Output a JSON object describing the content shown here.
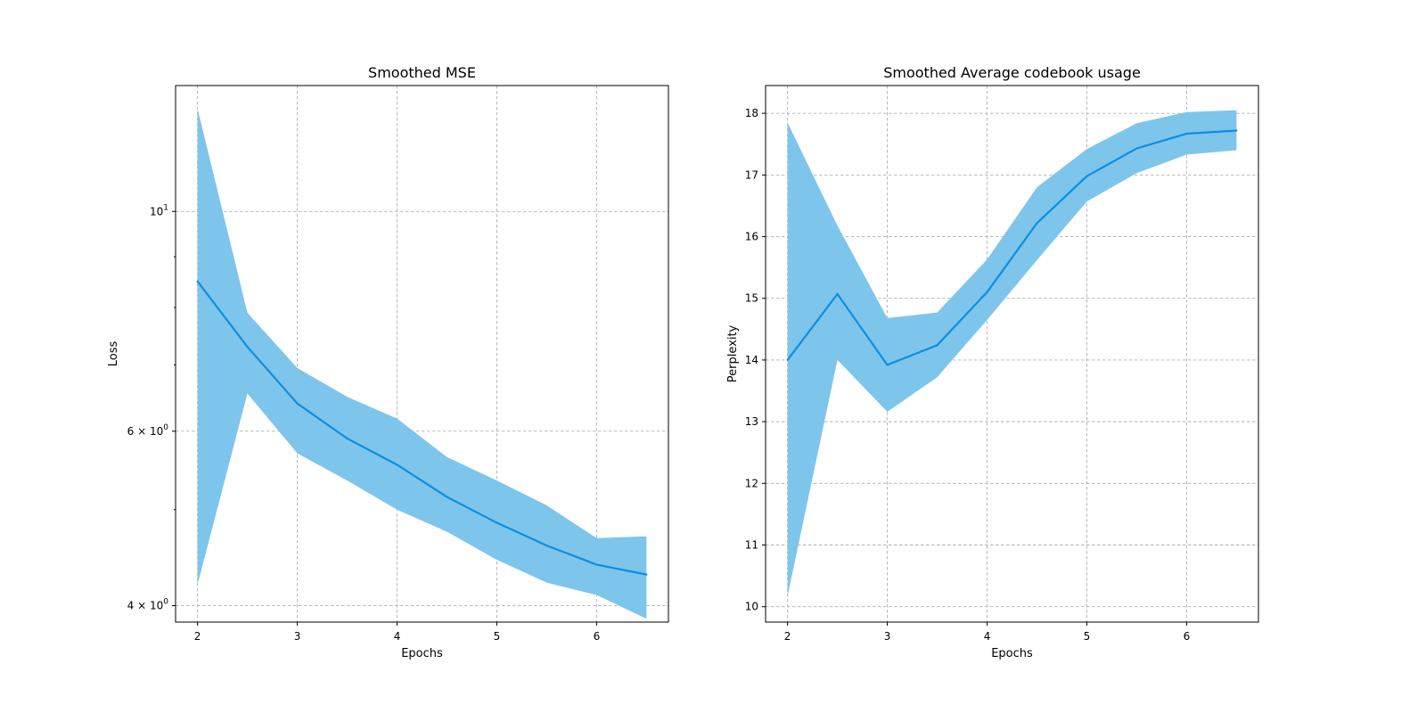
{
  "chart_data": [
    {
      "type": "line",
      "title": "Smoothed MSE",
      "xlabel": "Epochs",
      "ylabel": "Loss",
      "yscale": "log",
      "xlim": [
        1.78,
        6.72
      ],
      "ylim": [
        3.85,
        13.4
      ],
      "grid": true,
      "x_ticks": [
        {
          "value": 2,
          "label": "2"
        },
        {
          "value": 3,
          "label": "3"
        },
        {
          "value": 4,
          "label": "4"
        },
        {
          "value": 5,
          "label": "5"
        },
        {
          "value": 6,
          "label": "6"
        }
      ],
      "y_ticks": [
        {
          "value": 10,
          "label": "10",
          "exp": "1"
        },
        {
          "value": 6,
          "label": "6 × 10",
          "exp": "0"
        },
        {
          "value": 4,
          "label": "4 × 10",
          "exp": "0"
        }
      ],
      "y_minor_ticks": [
        5,
        7,
        8,
        9
      ],
      "color": "#0a8fe3",
      "fill_color": "#7ec5ec",
      "series": [
        {
          "x": [
            2,
            2.5,
            3,
            3.5,
            4,
            4.5,
            5,
            5.5,
            6,
            6.5
          ],
          "values": [
            8.5,
            7.3,
            6.4,
            5.9,
            5.55,
            5.15,
            4.85,
            4.6,
            4.4,
            4.3
          ],
          "lower": [
            4.2,
            6.55,
            5.7,
            5.35,
            5.0,
            4.75,
            4.45,
            4.22,
            4.1,
            3.88
          ],
          "upper": [
            12.7,
            7.9,
            6.95,
            6.5,
            6.18,
            5.65,
            5.35,
            5.05,
            4.68,
            4.7
          ]
        }
      ]
    },
    {
      "type": "line",
      "title": "Smoothed Average codebook usage",
      "xlabel": "Epochs",
      "ylabel": "Perplexity",
      "yscale": "linear",
      "xlim": [
        1.78,
        6.72
      ],
      "ylim": [
        9.75,
        18.45
      ],
      "grid": true,
      "x_ticks": [
        {
          "value": 2,
          "label": "2"
        },
        {
          "value": 3,
          "label": "3"
        },
        {
          "value": 4,
          "label": "4"
        },
        {
          "value": 5,
          "label": "5"
        },
        {
          "value": 6,
          "label": "6"
        }
      ],
      "y_ticks": [
        {
          "value": 10,
          "label": "10"
        },
        {
          "value": 11,
          "label": "11"
        },
        {
          "value": 12,
          "label": "12"
        },
        {
          "value": 13,
          "label": "13"
        },
        {
          "value": 14,
          "label": "14"
        },
        {
          "value": 15,
          "label": "15"
        },
        {
          "value": 16,
          "label": "16"
        },
        {
          "value": 17,
          "label": "17"
        },
        {
          "value": 18,
          "label": "18"
        }
      ],
      "y_minor_ticks": [],
      "color": "#0a8fe3",
      "fill_color": "#7ec5ec",
      "series": [
        {
          "x": [
            2,
            2.5,
            3,
            3.5,
            4,
            4.5,
            5,
            5.5,
            6,
            6.5
          ],
          "values": [
            14.0,
            15.07,
            13.92,
            14.24,
            15.1,
            16.22,
            16.98,
            17.43,
            17.67,
            17.72
          ],
          "lower": [
            10.17,
            14.0,
            13.16,
            13.72,
            14.65,
            15.62,
            16.57,
            17.03,
            17.33,
            17.4
          ],
          "upper": [
            17.85,
            16.18,
            14.68,
            14.77,
            15.63,
            16.8,
            17.42,
            17.84,
            18.02,
            18.05
          ]
        }
      ]
    }
  ]
}
